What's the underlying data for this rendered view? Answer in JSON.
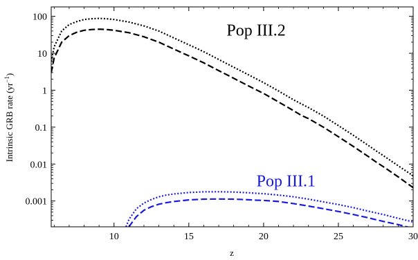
{
  "chart_data": {
    "type": "line",
    "title": "",
    "xlabel": "z",
    "ylabel": "Intrinsic GRB rate (yr",
    "ylabel_sup": "−1",
    "ylabel_close": ")",
    "xlim": [
      5.8,
      30
    ],
    "ylim": [
      0.0002,
      180
    ],
    "y_scale": "log",
    "grid": false,
    "x_ticks": [
      10,
      15,
      20,
      25,
      30
    ],
    "x_tick_labels": [
      "10",
      "15",
      "20",
      "25",
      "30"
    ],
    "y_ticks": [
      0.001,
      0.01,
      0.1,
      1,
      10,
      100
    ],
    "y_tick_labels": [
      "0.001",
      "0.01",
      "0.1",
      "1",
      "10",
      "100"
    ],
    "annotations": [
      {
        "text": "Pop III.2",
        "x": 19.5,
        "y": 30,
        "color": "#000000"
      },
      {
        "text": "Pop III.1",
        "x": 21.5,
        "y": 0.0025,
        "color": "#1a1adf"
      }
    ],
    "series": [
      {
        "group": "Pop III.2",
        "style": "dotted",
        "color": "#000000",
        "x": [
          5.8,
          6,
          6.5,
          7,
          7.5,
          8,
          8.5,
          9,
          9.5,
          10,
          11,
          12,
          13,
          14,
          15,
          16,
          17,
          18,
          19,
          20,
          21,
          22,
          22.5,
          23,
          24,
          25,
          26,
          27,
          27.5,
          28,
          29,
          30
        ],
        "y": [
          6,
          15,
          40,
          60,
          72,
          82,
          86,
          88,
          86,
          82,
          70,
          55,
          40,
          26,
          17,
          11,
          6.8,
          4.2,
          2.6,
          1.6,
          0.95,
          0.55,
          0.43,
          0.34,
          0.2,
          0.11,
          0.06,
          0.032,
          0.023,
          0.017,
          0.009,
          0.0048
        ]
      },
      {
        "group": "Pop III.2",
        "style": "dashed",
        "color": "#000000",
        "x": [
          5.8,
          6,
          6.5,
          7,
          7.5,
          8,
          8.5,
          9,
          9.5,
          10,
          11,
          12,
          13,
          14,
          15,
          16,
          17,
          18,
          19,
          20,
          21,
          22,
          22.5,
          23,
          24,
          25,
          26,
          27,
          27.5,
          28,
          29,
          30
        ],
        "y": [
          3,
          7.5,
          20,
          30,
          37,
          42,
          44,
          45,
          44,
          42,
          36,
          28,
          20,
          13,
          8.5,
          5.5,
          3.4,
          2.1,
          1.3,
          0.82,
          0.48,
          0.28,
          0.21,
          0.17,
          0.1,
          0.055,
          0.03,
          0.016,
          0.0115,
          0.0085,
          0.0045,
          0.0023
        ]
      },
      {
        "group": "Pop III.1",
        "style": "dotted",
        "color": "#1a1adf",
        "x": [
          10.8,
          11,
          11.5,
          12,
          12.5,
          13,
          13.5,
          14,
          15,
          16,
          17,
          18,
          19,
          19.5,
          20,
          21,
          22,
          23,
          24,
          25,
          26,
          27,
          28,
          29,
          30
        ],
        "y": [
          0.0002,
          0.00032,
          0.00062,
          0.00088,
          0.0011,
          0.0013,
          0.00145,
          0.00155,
          0.0017,
          0.00177,
          0.00178,
          0.00175,
          0.00167,
          0.00162,
          0.00158,
          0.00145,
          0.0013,
          0.00112,
          0.00095,
          0.0008,
          0.00066,
          0.00053,
          0.00043,
          0.00034,
          0.00027
        ]
      },
      {
        "group": "Pop III.1",
        "style": "dashed",
        "color": "#1a1adf",
        "x": [
          11,
          11.2,
          11.5,
          12,
          12.5,
          13,
          13.5,
          14,
          15,
          16,
          17,
          18,
          19,
          19.5,
          20,
          21,
          22,
          23,
          24,
          25,
          26,
          27,
          28,
          29,
          30
        ],
        "y": [
          0.0002,
          0.00026,
          0.00038,
          0.00056,
          0.0007,
          0.00082,
          0.0009,
          0.00097,
          0.00107,
          0.00112,
          0.00113,
          0.00112,
          0.00108,
          0.00105,
          0.00104,
          0.00097,
          0.00085,
          0.00073,
          0.00062,
          0.00052,
          0.00043,
          0.00035,
          0.00028,
          0.00023,
          0.00018
        ]
      }
    ]
  }
}
